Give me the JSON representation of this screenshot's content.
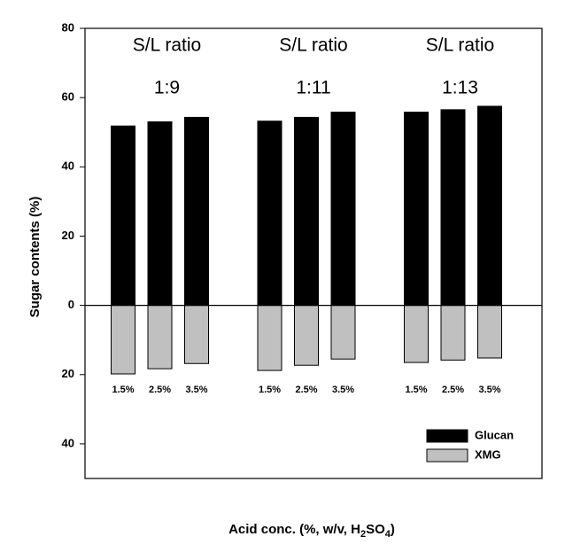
{
  "chart_data": {
    "type": "bar",
    "ylabel": "Sugar contents (%)",
    "xlabel": [
      "Acid conc. (%, w/v, H",
      "2",
      "SO",
      "4",
      ")"
    ],
    "groups": [
      [
        "S/L ratio",
        "1:9"
      ],
      [
        "S/L ratio",
        "1:11"
      ],
      [
        "S/L ratio",
        "1:13"
      ]
    ],
    "categories": [
      "1.5%",
      "2.5%",
      "3.5%",
      "1.5%",
      "2.5%",
      "3.5%",
      "1.5%",
      "2.5%",
      "3.5%"
    ],
    "series": [
      {
        "name": "Glucan",
        "color": "#000000",
        "values": [
          51.8,
          53.0,
          54.3,
          53.2,
          54.3,
          55.8,
          55.8,
          56.5,
          57.5
        ]
      },
      {
        "name": "XMG",
        "color": "#c0c0c0",
        "values": [
          -19.8,
          -18.3,
          -16.8,
          -18.8,
          -17.3,
          -15.5,
          -16.5,
          -15.8,
          -15.2
        ]
      }
    ],
    "ylim": [
      -50,
      80
    ],
    "yticks": [
      {
        "value": -40,
        "label": "40"
      },
      {
        "value": -20,
        "label": "20"
      },
      0,
      20,
      40,
      60,
      80
    ],
    "legend": "lower right"
  }
}
